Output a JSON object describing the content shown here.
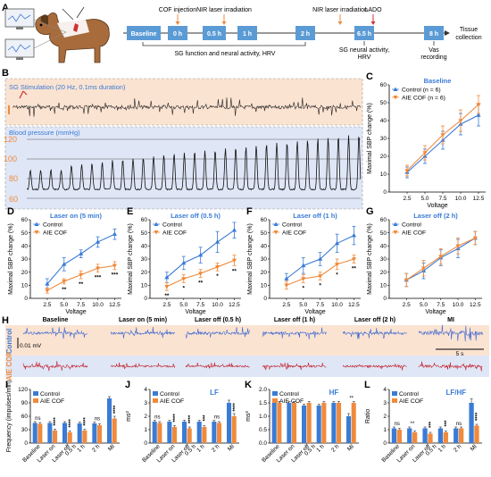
{
  "panel_letters": [
    "A",
    "B",
    "C",
    "D",
    "E",
    "F",
    "G",
    "H",
    "I",
    "J",
    "K",
    "L"
  ],
  "colors": {
    "control": "#3a7bd5",
    "aie": "#f08a3c",
    "tl_box": "#5b9bd5",
    "orange_bg": "#fbe3d2",
    "blue_bg": "#dfe6f6",
    "red_trace": "#c0121c",
    "blue_trace": "#2f5fd0",
    "title_blue": "#3a7bd5"
  },
  "timeline": {
    "boxes": [
      "Baseline",
      "0 h",
      "0.5 h",
      "1 h",
      "2 h",
      "6.5 h",
      "8 h"
    ],
    "top_labels": [
      "COF injection",
      "NIR laser irradiation",
      "NIR laser irradiation",
      "LADO"
    ],
    "bottom_labels": [
      "SG function and neural activity, HRV",
      "SG neural activity, HRV",
      "Vas recording"
    ],
    "end_label": "Tissue collection"
  },
  "panel_b": {
    "sg_title": "SG Stimulation (20 Hz, 0.1ms duration)",
    "bp_title": "Blood pressure (mmHg)",
    "bp_ticks": [
      "120",
      "100",
      "80",
      "60"
    ]
  },
  "line_axes": {
    "ylabel": "Maximal SBP change (%)",
    "xlabel": "Voltage",
    "xticks": [
      "2.5",
      "5.0",
      "7.5",
      "10.0",
      "12.5"
    ],
    "yticks": [
      "0",
      "10",
      "20",
      "30",
      "40",
      "50",
      "60"
    ],
    "legend_control": "Control",
    "legend_aie": "AIE COF"
  },
  "chart_data": [
    {
      "type": "line",
      "panel": "C",
      "title": "Baseline",
      "legend": [
        "Control (n = 6)",
        "AIE COF (n = 6)"
      ],
      "x": [
        2.5,
        5.0,
        7.5,
        10.0,
        12.5
      ],
      "xlim": [
        0,
        13.5
      ],
      "ylim": [
        0,
        60
      ],
      "series": [
        {
          "name": "Control (n = 6)",
          "values": [
            11,
            20,
            29,
            38,
            43
          ],
          "err": [
            3,
            4,
            5,
            6,
            6
          ]
        },
        {
          "name": "AIE COF (n = 6)",
          "values": [
            12,
            22,
            32,
            40,
            49
          ],
          "err": [
            3,
            4,
            5,
            6,
            5
          ]
        }
      ],
      "sig": [
        "",
        "",
        "",
        "",
        ""
      ]
    },
    {
      "type": "line",
      "panel": "D",
      "title": "Laser on (5 min)",
      "x": [
        2.5,
        5.0,
        7.5,
        10.0,
        12.5
      ],
      "xlim": [
        0,
        13.5
      ],
      "ylim": [
        0,
        60
      ],
      "series": [
        {
          "name": "Control",
          "values": [
            11,
            26,
            34,
            43,
            49
          ],
          "err": [
            4,
            5,
            3,
            4,
            4
          ]
        },
        {
          "name": "AIE COF",
          "values": [
            6,
            13,
            18,
            23,
            25
          ],
          "err": [
            2,
            2,
            3,
            3,
            3
          ]
        }
      ],
      "sig": [
        "",
        "**",
        "**",
        "***",
        "***"
      ]
    },
    {
      "type": "line",
      "panel": "E",
      "title": "Laser off (0.5 h)",
      "x": [
        2.5,
        5.0,
        7.5,
        10.0,
        12.5
      ],
      "xlim": [
        0,
        13.5
      ],
      "ylim": [
        0,
        60
      ],
      "series": [
        {
          "name": "Control",
          "values": [
            16,
            27,
            33,
            43,
            52
          ],
          "err": [
            4,
            5,
            6,
            8,
            6
          ]
        },
        {
          "name": "AIE COF",
          "values": [
            9,
            15,
            19,
            24,
            29
          ],
          "err": [
            3,
            3,
            3,
            3,
            4
          ]
        }
      ],
      "sig": [
        "**",
        "*",
        "**",
        "*",
        "**"
      ]
    },
    {
      "type": "line",
      "panel": "F",
      "title": "Laser off (1 h)",
      "x": [
        2.5,
        5.0,
        7.5,
        10.0,
        12.5
      ],
      "xlim": [
        0,
        13.5
      ],
      "ylim": [
        0,
        60
      ],
      "series": [
        {
          "name": "Control",
          "values": [
            15,
            25,
            30,
            42,
            48
          ],
          "err": [
            4,
            6,
            5,
            7,
            7
          ]
        },
        {
          "name": "AIE COF",
          "values": [
            10,
            15,
            17,
            26,
            30
          ],
          "err": [
            3,
            3,
            3,
            4,
            3
          ]
        }
      ],
      "sig": [
        "",
        "*",
        "*",
        "*",
        "**"
      ]
    },
    {
      "type": "line",
      "panel": "G",
      "title": "Laser off (2 h)",
      "x": [
        2.5,
        5.0,
        7.5,
        10.0,
        12.5
      ],
      "xlim": [
        0,
        13.5
      ],
      "ylim": [
        0,
        60
      ],
      "series": [
        {
          "name": "Control",
          "values": [
            14,
            21,
            31,
            38,
            46
          ],
          "err": [
            5,
            6,
            6,
            7,
            5
          ]
        },
        {
          "name": "AIE COF",
          "values": [
            14,
            23,
            32,
            40,
            46
          ],
          "err": [
            5,
            6,
            6,
            6,
            5
          ]
        }
      ],
      "sig": [
        "",
        "",
        "",
        "",
        ""
      ]
    },
    {
      "type": "bar",
      "panel": "I",
      "ylabel": "Frequency (impulses/min)",
      "categories": [
        "Baseline",
        "Laser on",
        "Laser off",
        "1 h",
        "2 h",
        "MI"
      ],
      "cat_sub": [
        "",
        "",
        "0.5 h",
        "",
        "",
        ""
      ],
      "ylim": [
        0,
        120
      ],
      "yticks": [
        "0",
        "30",
        "60",
        "90",
        "120"
      ],
      "series": [
        {
          "name": "Control",
          "values": [
            45,
            45,
            45,
            44,
            44,
            100
          ],
          "err": [
            3,
            3,
            3,
            3,
            3,
            4
          ]
        },
        {
          "name": "AIE COF",
          "values": [
            43,
            28,
            24,
            28,
            40,
            55
          ],
          "err": [
            3,
            3,
            3,
            3,
            3,
            5
          ]
        }
      ],
      "sig": [
        "ns",
        "****",
        "****",
        "****",
        "ns",
        "****"
      ]
    },
    {
      "type": "bar",
      "panel": "J",
      "title": "LF",
      "ylabel": "ms²",
      "categories": [
        "Baseline",
        "Laser on",
        "Laser off",
        "1 h",
        "2 h",
        "MI"
      ],
      "cat_sub": [
        "",
        "",
        "0.5 h",
        "",
        "",
        ""
      ],
      "ylim": [
        0,
        4
      ],
      "yticks": [
        "0",
        "1",
        "2",
        "3",
        "4"
      ],
      "series": [
        {
          "name": "Control",
          "values": [
            1.6,
            1.6,
            1.6,
            1.6,
            1.6,
            3.0
          ],
          "err": [
            0.1,
            0.1,
            0.1,
            0.1,
            0.1,
            0.2
          ]
        },
        {
          "name": "AIE COF",
          "values": [
            1.5,
            1.2,
            1.1,
            1.2,
            1.5,
            2.0
          ],
          "err": [
            0.1,
            0.1,
            0.1,
            0.1,
            0.1,
            0.2
          ]
        }
      ],
      "sig": [
        "ns",
        "****",
        "****",
        "***",
        "ns",
        "****"
      ]
    },
    {
      "type": "bar",
      "panel": "K",
      "title": "HF",
      "ylabel": "ms²",
      "categories": [
        "Baseline",
        "Laser on",
        "Laser off",
        "1 h",
        "2 h",
        "MI"
      ],
      "cat_sub": [
        "",
        "",
        "0.5 h",
        "",
        "",
        ""
      ],
      "ylim": [
        0,
        2.0
      ],
      "yticks": [
        "0.0",
        "0.5",
        "1.0",
        "1.5",
        "2.0"
      ],
      "series": [
        {
          "name": "Control",
          "values": [
            1.5,
            1.5,
            1.4,
            1.4,
            1.5,
            1.0
          ],
          "err": [
            0.05,
            0.05,
            0.05,
            0.05,
            0.05,
            0.1
          ]
        },
        {
          "name": "AIE COF",
          "values": [
            1.5,
            1.5,
            1.5,
            1.5,
            1.5,
            1.5
          ],
          "err": [
            0.05,
            0.05,
            0.05,
            0.05,
            0.05,
            0.05
          ]
        }
      ],
      "sig": [
        "",
        "",
        "",
        "",
        "",
        "**"
      ]
    },
    {
      "type": "bar",
      "panel": "L",
      "title": "LF/HF",
      "ylabel": "Ratio",
      "categories": [
        "Baseline",
        "Laser on",
        "Laser off",
        "1 h",
        "2 h",
        "MI"
      ],
      "cat_sub": [
        "",
        "",
        "0.5 h",
        "",
        "",
        ""
      ],
      "ylim": [
        0,
        4
      ],
      "yticks": [
        "0",
        "1",
        "2",
        "3",
        "4"
      ],
      "series": [
        {
          "name": "Control",
          "values": [
            1.1,
            1.1,
            1.1,
            1.1,
            1.1,
            3.0
          ],
          "err": [
            0.1,
            0.1,
            0.1,
            0.1,
            0.1,
            0.3
          ]
        },
        {
          "name": "AIE COF",
          "values": [
            1.0,
            0.8,
            0.7,
            0.8,
            1.1,
            1.3
          ],
          "err": [
            0.1,
            0.1,
            0.1,
            0.1,
            0.1,
            0.1
          ]
        }
      ],
      "sig": [
        "ns",
        "**",
        "***",
        "***",
        "ns",
        "****"
      ]
    }
  ],
  "panel_h": {
    "headers": [
      "Baseline",
      "Laser on (5 min)",
      "Laser off (0.5 h)",
      "Laser off (1 h)",
      "Laser off (2 h)",
      "MI"
    ],
    "row_control": "Control",
    "row_aie": "AIE COF",
    "scale_mv": "0.01 mV",
    "scale_s": "5 s"
  }
}
